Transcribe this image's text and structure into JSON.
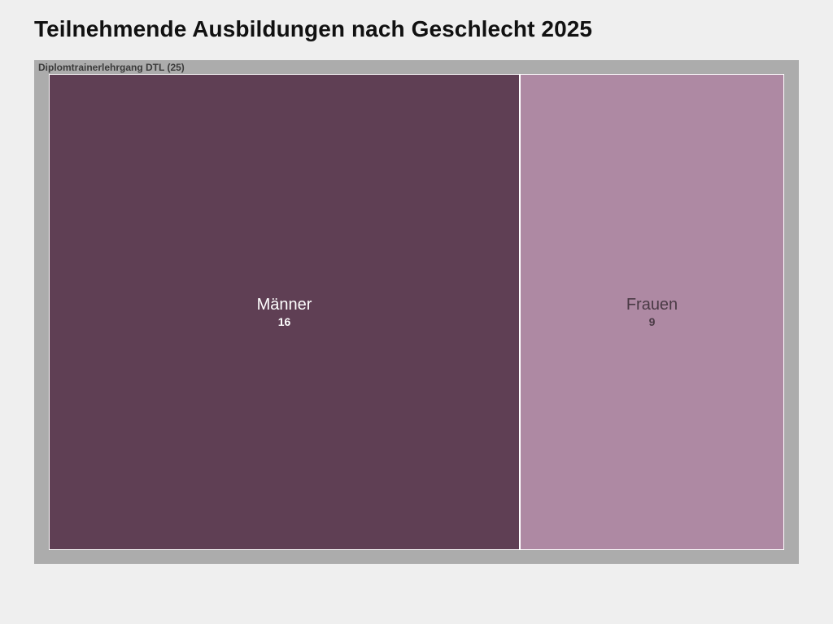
{
  "page": {
    "title": "Teilnehmende Ausbildungen nach Geschlecht 2025"
  },
  "chart_data": {
    "type": "treemap",
    "title": "Teilnehmende Ausbildungen nach Geschlecht 2025",
    "group": {
      "label": "Diplomtrainerlehrgang DTL (25)",
      "name": "Diplomtrainerlehrgang DTL",
      "total": 25
    },
    "categories": [
      "Männer",
      "Frauen"
    ],
    "values": [
      16,
      9
    ],
    "value_labels": [
      "16",
      "9"
    ],
    "colors": [
      "#5f3f54",
      "#ae89a3"
    ],
    "label_colors": [
      "#ffffff",
      "#4a3a45"
    ],
    "frame_color": "#acacac",
    "background": "#efefef"
  }
}
